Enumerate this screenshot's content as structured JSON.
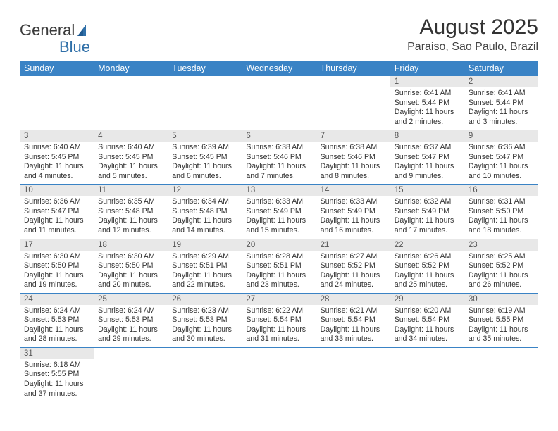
{
  "brand": {
    "line1": "General",
    "line2": "Blue"
  },
  "title": "August 2025",
  "location": "Paraiso, Sao Paulo, Brazil",
  "colors": {
    "header_bg": "#3a83c5",
    "header_fg": "#ffffff",
    "daynum_bg": "#e8e8e8",
    "rule": "#3a83c5"
  },
  "weekdays": [
    "Sunday",
    "Monday",
    "Tuesday",
    "Wednesday",
    "Thursday",
    "Friday",
    "Saturday"
  ],
  "weeks": [
    [
      null,
      null,
      null,
      null,
      null,
      {
        "n": "1",
        "sunrise": "6:41 AM",
        "sunset": "5:44 PM",
        "dl": "11 hours and 2 minutes."
      },
      {
        "n": "2",
        "sunrise": "6:41 AM",
        "sunset": "5:44 PM",
        "dl": "11 hours and 3 minutes."
      }
    ],
    [
      {
        "n": "3",
        "sunrise": "6:40 AM",
        "sunset": "5:45 PM",
        "dl": "11 hours and 4 minutes."
      },
      {
        "n": "4",
        "sunrise": "6:40 AM",
        "sunset": "5:45 PM",
        "dl": "11 hours and 5 minutes."
      },
      {
        "n": "5",
        "sunrise": "6:39 AM",
        "sunset": "5:45 PM",
        "dl": "11 hours and 6 minutes."
      },
      {
        "n": "6",
        "sunrise": "6:38 AM",
        "sunset": "5:46 PM",
        "dl": "11 hours and 7 minutes."
      },
      {
        "n": "7",
        "sunrise": "6:38 AM",
        "sunset": "5:46 PM",
        "dl": "11 hours and 8 minutes."
      },
      {
        "n": "8",
        "sunrise": "6:37 AM",
        "sunset": "5:47 PM",
        "dl": "11 hours and 9 minutes."
      },
      {
        "n": "9",
        "sunrise": "6:36 AM",
        "sunset": "5:47 PM",
        "dl": "11 hours and 10 minutes."
      }
    ],
    [
      {
        "n": "10",
        "sunrise": "6:36 AM",
        "sunset": "5:47 PM",
        "dl": "11 hours and 11 minutes."
      },
      {
        "n": "11",
        "sunrise": "6:35 AM",
        "sunset": "5:48 PM",
        "dl": "11 hours and 12 minutes."
      },
      {
        "n": "12",
        "sunrise": "6:34 AM",
        "sunset": "5:48 PM",
        "dl": "11 hours and 14 minutes."
      },
      {
        "n": "13",
        "sunrise": "6:33 AM",
        "sunset": "5:49 PM",
        "dl": "11 hours and 15 minutes."
      },
      {
        "n": "14",
        "sunrise": "6:33 AM",
        "sunset": "5:49 PM",
        "dl": "11 hours and 16 minutes."
      },
      {
        "n": "15",
        "sunrise": "6:32 AM",
        "sunset": "5:49 PM",
        "dl": "11 hours and 17 minutes."
      },
      {
        "n": "16",
        "sunrise": "6:31 AM",
        "sunset": "5:50 PM",
        "dl": "11 hours and 18 minutes."
      }
    ],
    [
      {
        "n": "17",
        "sunrise": "6:30 AM",
        "sunset": "5:50 PM",
        "dl": "11 hours and 19 minutes."
      },
      {
        "n": "18",
        "sunrise": "6:30 AM",
        "sunset": "5:50 PM",
        "dl": "11 hours and 20 minutes."
      },
      {
        "n": "19",
        "sunrise": "6:29 AM",
        "sunset": "5:51 PM",
        "dl": "11 hours and 22 minutes."
      },
      {
        "n": "20",
        "sunrise": "6:28 AM",
        "sunset": "5:51 PM",
        "dl": "11 hours and 23 minutes."
      },
      {
        "n": "21",
        "sunrise": "6:27 AM",
        "sunset": "5:52 PM",
        "dl": "11 hours and 24 minutes."
      },
      {
        "n": "22",
        "sunrise": "6:26 AM",
        "sunset": "5:52 PM",
        "dl": "11 hours and 25 minutes."
      },
      {
        "n": "23",
        "sunrise": "6:25 AM",
        "sunset": "5:52 PM",
        "dl": "11 hours and 26 minutes."
      }
    ],
    [
      {
        "n": "24",
        "sunrise": "6:24 AM",
        "sunset": "5:53 PM",
        "dl": "11 hours and 28 minutes."
      },
      {
        "n": "25",
        "sunrise": "6:24 AM",
        "sunset": "5:53 PM",
        "dl": "11 hours and 29 minutes."
      },
      {
        "n": "26",
        "sunrise": "6:23 AM",
        "sunset": "5:53 PM",
        "dl": "11 hours and 30 minutes."
      },
      {
        "n": "27",
        "sunrise": "6:22 AM",
        "sunset": "5:54 PM",
        "dl": "11 hours and 31 minutes."
      },
      {
        "n": "28",
        "sunrise": "6:21 AM",
        "sunset": "5:54 PM",
        "dl": "11 hours and 33 minutes."
      },
      {
        "n": "29",
        "sunrise": "6:20 AM",
        "sunset": "5:54 PM",
        "dl": "11 hours and 34 minutes."
      },
      {
        "n": "30",
        "sunrise": "6:19 AM",
        "sunset": "5:55 PM",
        "dl": "11 hours and 35 minutes."
      }
    ],
    [
      {
        "n": "31",
        "sunrise": "6:18 AM",
        "sunset": "5:55 PM",
        "dl": "11 hours and 37 minutes."
      },
      null,
      null,
      null,
      null,
      null,
      null
    ]
  ]
}
